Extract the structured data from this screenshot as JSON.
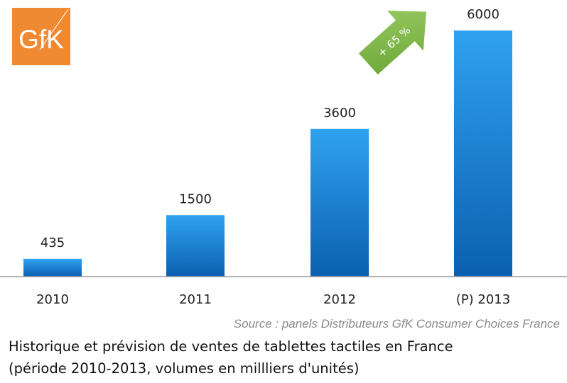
{
  "logo": {
    "text": "GfK",
    "color": "#f08a32"
  },
  "growth_badge": {
    "text": "+ 65 %",
    "color": "#7cb342"
  },
  "source": "Source : panels Distributeurs GfK Consumer Choices France",
  "caption": {
    "line1": "Historique et prévision de ventes de tablettes tactiles en France",
    "line2": "(période 2010-2013, volumes en millliers d'unités)"
  },
  "colors": {
    "bar_top": "#2fa2ef",
    "bar_bottom": "#0b5fb0",
    "axis": "#9a9a9a"
  },
  "chart_data": {
    "type": "bar",
    "categories": [
      "2010",
      "2011",
      "2012",
      "(P) 2013"
    ],
    "values": [
      435,
      1500,
      3600,
      6000
    ],
    "data_labels": [
      "435",
      "1500",
      "3600",
      "6000"
    ],
    "title": "",
    "xlabel": "",
    "ylabel": "",
    "ylim": [
      0,
      6000
    ],
    "grid": false,
    "legend": "none"
  }
}
